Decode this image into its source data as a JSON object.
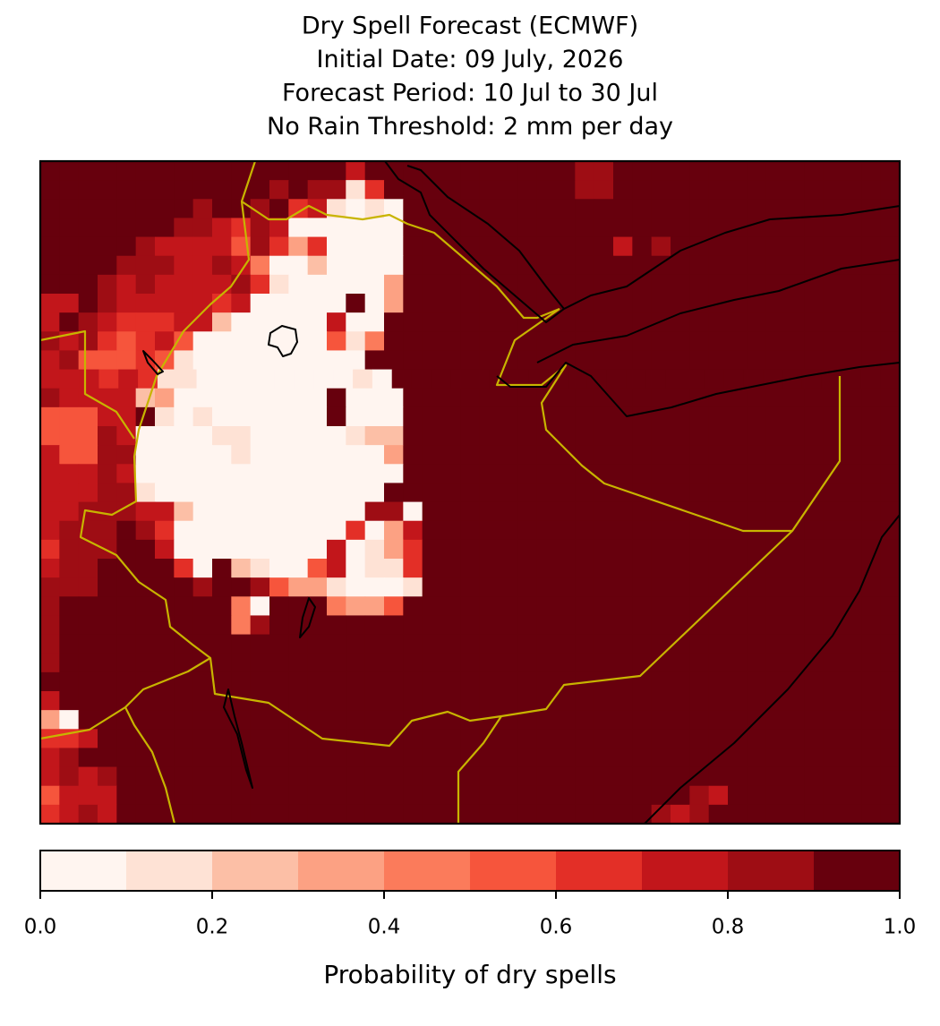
{
  "chart_data": {
    "type": "raster-map",
    "title_lines": [
      "Dry Spell Forecast (ECMWF)",
      "Initial Date: 09 July, 2026",
      "Forecast Period: 10 Jul to 30 Jul",
      "No Rain Threshold: 2 mm per day"
    ],
    "colorbar_label": "Probability of dry spells",
    "levels": [
      0,
      0.1,
      0.2,
      0.3,
      0.4,
      0.5,
      0.6,
      0.7,
      0.8,
      0.9,
      1
    ],
    "colors": [
      "#fff5f0",
      "#fee2d5",
      "#fcbfa6",
      "#fca183",
      "#fb7b5b",
      "#f6553c",
      "#e32f27",
      "#c2161b",
      "#9e0d14",
      "#67000d"
    ],
    "cticks": [
      {
        "value": 0,
        "label": "0.0"
      },
      {
        "value": 0.2,
        "label": "0.2"
      },
      {
        "value": 0.4,
        "label": "0.4"
      },
      {
        "value": 0.6,
        "label": "0.6"
      },
      {
        "value": 0.8,
        "label": "0.8"
      },
      {
        "value": 1,
        "label": "1.0"
      }
    ],
    "grid": [
      [
        1,
        1,
        1,
        1,
        1,
        1,
        1,
        1,
        1,
        1,
        1,
        1,
        1,
        1,
        1,
        1,
        0.75,
        1,
        1,
        1,
        1,
        1,
        1,
        1,
        1,
        1,
        1,
        1,
        0.85,
        0.85,
        1,
        1,
        1,
        1,
        1,
        1,
        1,
        1,
        1,
        1,
        1,
        1,
        1,
        1,
        1
      ],
      [
        1,
        1,
        1,
        1,
        1,
        1,
        1,
        1,
        1,
        1,
        1,
        1,
        0.85,
        1,
        0.85,
        0.85,
        0.15,
        0.65,
        1,
        1,
        1,
        1,
        1,
        1,
        1,
        1,
        1,
        1,
        0.85,
        0.85,
        1,
        1,
        1,
        1,
        1,
        1,
        1,
        1,
        1,
        1,
        1,
        1,
        1,
        1,
        1
      ],
      [
        1,
        1,
        1,
        1,
        1,
        1,
        1,
        1,
        0.85,
        1,
        1,
        0.85,
        1,
        0.65,
        0.75,
        0.15,
        0,
        0.15,
        0,
        1,
        1,
        1,
        1,
        1,
        1,
        1,
        1,
        1,
        1,
        1,
        1,
        1,
        1,
        1,
        1,
        1,
        1,
        1,
        1,
        1,
        1,
        1,
        1,
        1,
        1
      ],
      [
        1,
        1,
        1,
        1,
        1,
        1,
        1,
        0.85,
        0.85,
        0.75,
        0.65,
        0.85,
        0.75,
        0,
        0,
        0,
        0,
        0,
        0,
        1,
        1,
        1,
        1,
        1,
        1,
        1,
        1,
        1,
        1,
        1,
        1,
        1,
        1,
        1,
        1,
        1,
        1,
        1,
        1,
        1,
        1,
        1,
        1,
        1,
        1
      ],
      [
        1,
        1,
        1,
        1,
        1,
        0.85,
        0.75,
        0.75,
        0.75,
        0.75,
        0.55,
        0.85,
        0.65,
        0.35,
        0.65,
        0,
        0,
        0,
        0,
        1,
        1,
        1,
        1,
        1,
        1,
        1,
        1,
        1,
        1,
        1,
        0.75,
        1,
        0.85,
        1,
        1,
        1,
        1,
        1,
        1,
        1,
        1,
        1,
        1,
        1,
        1
      ],
      [
        1,
        1,
        1,
        1,
        0.85,
        0.85,
        0.85,
        0.75,
        0.75,
        0.85,
        0.75,
        0.45,
        0,
        0,
        0.25,
        0,
        0,
        0,
        0,
        1,
        1,
        1,
        1,
        1,
        1,
        1,
        1,
        1,
        1,
        1,
        1,
        1,
        1,
        1,
        1,
        1,
        1,
        1,
        1,
        1,
        1,
        1,
        1,
        1,
        1
      ],
      [
        1,
        1,
        1,
        0.85,
        0.75,
        0.85,
        0.75,
        0.75,
        0.75,
        0.75,
        0.85,
        0.65,
        0.15,
        0,
        0,
        0,
        0,
        0,
        0.35,
        1,
        1,
        1,
        1,
        1,
        1,
        1,
        1,
        1,
        1,
        1,
        1,
        1,
        1,
        1,
        1,
        1,
        1,
        1,
        1,
        1,
        1,
        1,
        1,
        1,
        1
      ],
      [
        0.75,
        0.75,
        1,
        0.85,
        0.75,
        0.75,
        0.75,
        0.75,
        0.75,
        0.65,
        0.75,
        0,
        0,
        0,
        0,
        0,
        1,
        0,
        0.35,
        1,
        1,
        1,
        1,
        1,
        1,
        1,
        1,
        1,
        1,
        1,
        1,
        1,
        1,
        1,
        1,
        1,
        1,
        1,
        1,
        1,
        1,
        1,
        1,
        1,
        1
      ],
      [
        0.75,
        1,
        0.85,
        0.75,
        0.65,
        0.65,
        0.65,
        0.75,
        0.75,
        0.25,
        0,
        0,
        0,
        0,
        0,
        0.75,
        0,
        0,
        1,
        1,
        1,
        1,
        1,
        1,
        1,
        1,
        1,
        1,
        1,
        1,
        1,
        1,
        1,
        1,
        1,
        1,
        1,
        1,
        1,
        1,
        1,
        1,
        1,
        1,
        1
      ],
      [
        0.85,
        0.75,
        0.85,
        0.65,
        0.55,
        0.65,
        0.75,
        0.55,
        0,
        0,
        0,
        0,
        0,
        0,
        0,
        0.55,
        0.15,
        0.45,
        1,
        1,
        1,
        1,
        1,
        1,
        1,
        1,
        1,
        1,
        1,
        1,
        1,
        1,
        1,
        1,
        1,
        1,
        1,
        1,
        1,
        1,
        1,
        1,
        1,
        1,
        1
      ],
      [
        0.75,
        0.85,
        0.55,
        0.55,
        0.55,
        0.65,
        0.55,
        0.15,
        0,
        0,
        0,
        0,
        0,
        0,
        0,
        0,
        0,
        1,
        1,
        1,
        1,
        1,
        1,
        1,
        1,
        1,
        1,
        1,
        1,
        1,
        1,
        1,
        1,
        1,
        1,
        1,
        1,
        1,
        1,
        1,
        1,
        1,
        1,
        1,
        1
      ],
      [
        0.75,
        0.75,
        0.75,
        0.65,
        0.75,
        0.65,
        0.15,
        0.15,
        0,
        0,
        0,
        0,
        0,
        0,
        0,
        0,
        0.15,
        0,
        1,
        1,
        1,
        1,
        1,
        1,
        1,
        1,
        1,
        1,
        1,
        1,
        1,
        1,
        1,
        1,
        1,
        1,
        1,
        1,
        1,
        1,
        1,
        1,
        1,
        1
      ],
      [
        0.85,
        0.75,
        0.75,
        0.75,
        0.75,
        0.25,
        0.35,
        0,
        0,
        0,
        0,
        0,
        0,
        0,
        0,
        1,
        0,
        0,
        0,
        1,
        1,
        1,
        1,
        1,
        1,
        1,
        1,
        1,
        1,
        1,
        1,
        1,
        1,
        1,
        1,
        1,
        1,
        1,
        1,
        1,
        1,
        1,
        1,
        1,
        1
      ],
      [
        0.55,
        0.55,
        0.55,
        0.75,
        0.75,
        1,
        0.15,
        0,
        0.15,
        0,
        0,
        0,
        0,
        0,
        0,
        1,
        0,
        0,
        0,
        1,
        1,
        1,
        1,
        1,
        1,
        1,
        1,
        1,
        1,
        1,
        1,
        1,
        1,
        1,
        1,
        1,
        1,
        1,
        1,
        1,
        1,
        1,
        1,
        1,
        1
      ],
      [
        0.55,
        0.55,
        0.55,
        0.85,
        0.75,
        0,
        0,
        0,
        0,
        0.15,
        0.15,
        0,
        0,
        0,
        0,
        0,
        0.15,
        0.25,
        0.25,
        1,
        1,
        1,
        1,
        1,
        1,
        1,
        1,
        1,
        1,
        1,
        1,
        1,
        1,
        1,
        1,
        1,
        1,
        1,
        1,
        1,
        1,
        1,
        1,
        1,
        1
      ],
      [
        0.75,
        0.55,
        0.55,
        0.85,
        0.85,
        0,
        0,
        0,
        0,
        0,
        0.15,
        0,
        0,
        0,
        0,
        0,
        0,
        0,
        0.35,
        1,
        1,
        1,
        1,
        1,
        1,
        1,
        1,
        1,
        1,
        1,
        1,
        1,
        1,
        1,
        1,
        1,
        1,
        1,
        1,
        1,
        1,
        1,
        1,
        1,
        1
      ],
      [
        0.75,
        0.75,
        0.75,
        0.85,
        0.75,
        0,
        0,
        0,
        0,
        0,
        0,
        0,
        0,
        0,
        0,
        0,
        0,
        0,
        0,
        1,
        1,
        1,
        1,
        1,
        1,
        1,
        1,
        1,
        1,
        1,
        1,
        1,
        1,
        1,
        1,
        1,
        1,
        1,
        1,
        1,
        1,
        1,
        1,
        1,
        1
      ],
      [
        0.75,
        0.75,
        0.75,
        0.85,
        0.85,
        0.15,
        0,
        0,
        0,
        0,
        0,
        0,
        0,
        0,
        0,
        0,
        0,
        0,
        1,
        1,
        1,
        1,
        1,
        1,
        1,
        1,
        1,
        1,
        1,
        1,
        1,
        1,
        1,
        1,
        1,
        1,
        1,
        1,
        1,
        1,
        1,
        1,
        1,
        1,
        1
      ],
      [
        0.75,
        0.75,
        0.85,
        0.85,
        0.85,
        0.75,
        0.75,
        0.25,
        0,
        0,
        0,
        0,
        0,
        0,
        0,
        0,
        0,
        0.85,
        0.85,
        0,
        1,
        1,
        1,
        1,
        1,
        1,
        1,
        1,
        1,
        1,
        1,
        1,
        1,
        1,
        1,
        1,
        1,
        1,
        1,
        1,
        1,
        1,
        1,
        1,
        1
      ],
      [
        0.75,
        0.85,
        0.85,
        0.85,
        1,
        0.85,
        0.65,
        0,
        0,
        0,
        0,
        0,
        0,
        0,
        0,
        0,
        0.65,
        0,
        0.35,
        0.75,
        1,
        1,
        1,
        1,
        1,
        1,
        1,
        1,
        1,
        1,
        1,
        1,
        1,
        1,
        1,
        1,
        1,
        1,
        1,
        1,
        1,
        1,
        1,
        1,
        1
      ],
      [
        0.65,
        0.85,
        0.85,
        0.85,
        1,
        1,
        0.75,
        0,
        0,
        0,
        0,
        0,
        0,
        0,
        0,
        0.75,
        0,
        0.15,
        0.35,
        0.65,
        1,
        1,
        1,
        1,
        1,
        1,
        1,
        1,
        1,
        1,
        1,
        1,
        1,
        1,
        1,
        1,
        1,
        1,
        1,
        1,
        1,
        1,
        1,
        1,
        1
      ],
      [
        0.75,
        0.85,
        0.85,
        1,
        1,
        1,
        1,
        0.65,
        0,
        1,
        0.25,
        0.15,
        0,
        0,
        0.55,
        0.75,
        0,
        0.15,
        0.15,
        0.65,
        1,
        1,
        1,
        1,
        1,
        1,
        1,
        1,
        1,
        1,
        1,
        1,
        1,
        1,
        1,
        1,
        1,
        1,
        1,
        1,
        1,
        1,
        1,
        1,
        1
      ],
      [
        0.85,
        0.85,
        0.85,
        1,
        1,
        1,
        1,
        1,
        0.85,
        1,
        1,
        0.85,
        0.55,
        0.35,
        0.35,
        0.15,
        0,
        0,
        0,
        0.15,
        1,
        1,
        1,
        1,
        1,
        1,
        1,
        1,
        1,
        1,
        1,
        1,
        1,
        1,
        1,
        1,
        1,
        1,
        1,
        1,
        1,
        1,
        1,
        1,
        1
      ],
      [
        0.85,
        1,
        1,
        1,
        1,
        1,
        1,
        1,
        1,
        1,
        0.45,
        0,
        1,
        1,
        1,
        0.45,
        0.35,
        0.35,
        0.55,
        1,
        1,
        1,
        1,
        1,
        1,
        1,
        1,
        1,
        1,
        1,
        1,
        1,
        1,
        1,
        1,
        1,
        1,
        1,
        1,
        1,
        1,
        1,
        1,
        1,
        1
      ],
      [
        0.85,
        1,
        1,
        1,
        1,
        1,
        1,
        1,
        1,
        1,
        0.45,
        0.85,
        1,
        1,
        1,
        1,
        1,
        1,
        1,
        1,
        1,
        1,
        1,
        1,
        1,
        1,
        1,
        1,
        1,
        1,
        1,
        1,
        1,
        1,
        1,
        1,
        1,
        1,
        1,
        1,
        1,
        1,
        1,
        1,
        1
      ],
      [
        0.85,
        1,
        1,
        1,
        1,
        1,
        1,
        1,
        1,
        1,
        1,
        1,
        1,
        1,
        1,
        1,
        1,
        1,
        1,
        1,
        1,
        1,
        1,
        1,
        1,
        1,
        1,
        1,
        1,
        1,
        1,
        1,
        1,
        1,
        1,
        1,
        1,
        1,
        1,
        1,
        1,
        1,
        1,
        1,
        1
      ],
      [
        0.85,
        1,
        1,
        1,
        1,
        1,
        1,
        1,
        1,
        1,
        1,
        1,
        1,
        1,
        1,
        1,
        1,
        1,
        1,
        1,
        1,
        1,
        1,
        1,
        1,
        1,
        1,
        1,
        1,
        1,
        1,
        1,
        1,
        1,
        1,
        1,
        1,
        1,
        1,
        1,
        1,
        1,
        1,
        1,
        1
      ],
      [
        1,
        1,
        1,
        1,
        1,
        1,
        1,
        1,
        1,
        1,
        1,
        1,
        1,
        1,
        1,
        1,
        1,
        1,
        1,
        1,
        1,
        1,
        1,
        1,
        1,
        1,
        1,
        1,
        1,
        1,
        1,
        1,
        1,
        1,
        1,
        1,
        1,
        1,
        1,
        1,
        1,
        1,
        1,
        1,
        1
      ],
      [
        0.75,
        1,
        1,
        1,
        1,
        1,
        1,
        1,
        1,
        1,
        1,
        1,
        1,
        1,
        1,
        1,
        1,
        1,
        1,
        1,
        1,
        1,
        1,
        1,
        1,
        1,
        1,
        1,
        1,
        1,
        1,
        1,
        1,
        1,
        1,
        1,
        1,
        1,
        1,
        1,
        1,
        1,
        1,
        1,
        1
      ],
      [
        0.35,
        0,
        1,
        1,
        1,
        1,
        1,
        1,
        1,
        1,
        1,
        1,
        1,
        1,
        1,
        1,
        1,
        1,
        1,
        1,
        1,
        1,
        1,
        1,
        1,
        1,
        1,
        1,
        1,
        1,
        1,
        1,
        1,
        1,
        1,
        1,
        1,
        1,
        1,
        1,
        1,
        1,
        1,
        1,
        1
      ],
      [
        0.65,
        0.65,
        0.75,
        1,
        1,
        1,
        1,
        1,
        1,
        1,
        1,
        1,
        1,
        1,
        1,
        1,
        1,
        1,
        1,
        1,
        1,
        1,
        1,
        1,
        1,
        1,
        1,
        1,
        1,
        1,
        1,
        1,
        1,
        1,
        1,
        1,
        1,
        1,
        1,
        1,
        1,
        1,
        1,
        1,
        1
      ],
      [
        0.75,
        0.85,
        1,
        1,
        1,
        1,
        1,
        1,
        1,
        1,
        1,
        1,
        1,
        1,
        1,
        1,
        1,
        1,
        1,
        1,
        1,
        1,
        1,
        1,
        1,
        1,
        1,
        1,
        1,
        1,
        1,
        1,
        1,
        1,
        1,
        1,
        1,
        1,
        1,
        1,
        1,
        1,
        1,
        1,
        1
      ],
      [
        0.75,
        0.85,
        0.75,
        0.85,
        1,
        1,
        1,
        1,
        1,
        1,
        1,
        1,
        1,
        1,
        1,
        1,
        1,
        1,
        1,
        1,
        1,
        1,
        1,
        1,
        1,
        1,
        1,
        1,
        1,
        1,
        1,
        1,
        1,
        1,
        1,
        1,
        1,
        1,
        1,
        1,
        1,
        1,
        1,
        1,
        1
      ],
      [
        0.55,
        0.75,
        0.75,
        0.75,
        1,
        1,
        1,
        1,
        1,
        1,
        1,
        1,
        1,
        1,
        1,
        1,
        1,
        1,
        1,
        1,
        1,
        1,
        1,
        1,
        1,
        1,
        1,
        1,
        1,
        1,
        1,
        1,
        1,
        1,
        0.85,
        0.75,
        1,
        1,
        1,
        1,
        1,
        1,
        1,
        1,
        1
      ],
      [
        0.65,
        0.75,
        0.85,
        0.75,
        1,
        1,
        1,
        1,
        1,
        1,
        1,
        1,
        1,
        1,
        1,
        1,
        1,
        1,
        1,
        1,
        1,
        1,
        1,
        1,
        1,
        1,
        1,
        1,
        1,
        1,
        1,
        1,
        0.85,
        0.75,
        0.85,
        1,
        1,
        1,
        1,
        1,
        1,
        1,
        1,
        1,
        1
      ]
    ]
  }
}
